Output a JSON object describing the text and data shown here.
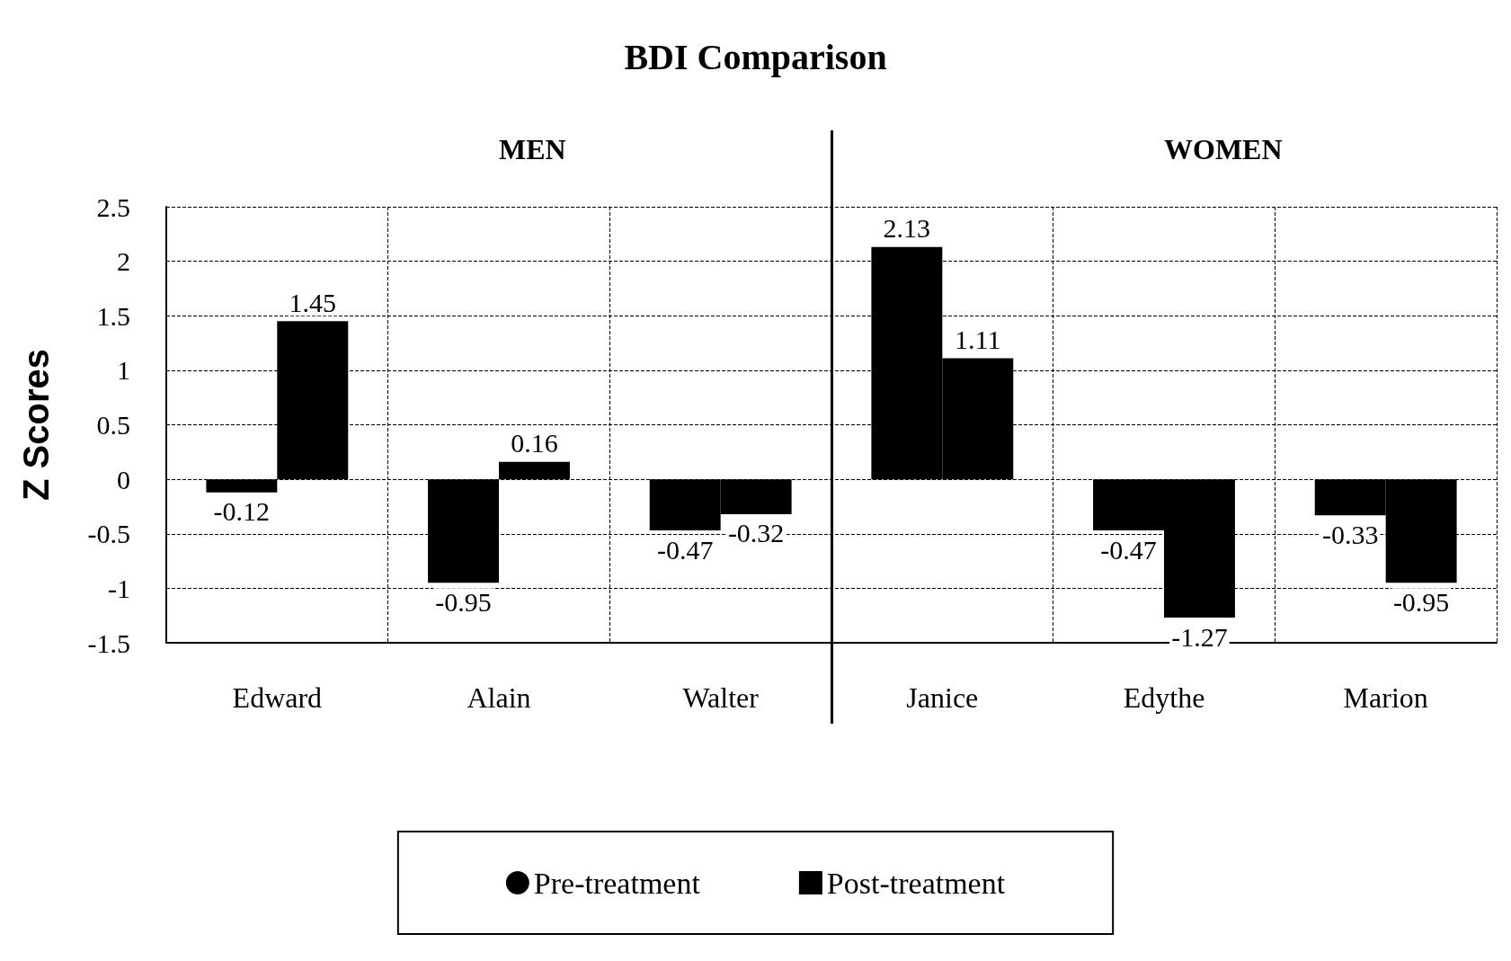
{
  "chart_data": {
    "type": "bar",
    "title": "BDI Comparison",
    "ylabel": "Z Scores",
    "annotations": [
      "MEN",
      "WOMEN"
    ],
    "categories": [
      "Edward",
      "Alain",
      "Walter",
      "Janice",
      "Edythe",
      "Marion"
    ],
    "series": [
      {
        "name": "Pre-treatment",
        "color": "#000000",
        "marker": "circle",
        "values": [
          -0.12,
          -0.95,
          -0.47,
          2.13,
          -0.47,
          -0.33
        ]
      },
      {
        "name": "Post-treatment",
        "color": "#000000",
        "marker": "square",
        "values": [
          1.45,
          0.16,
          -0.32,
          1.11,
          -1.27,
          -0.95
        ]
      }
    ],
    "ylim": [
      -1.5,
      2.5
    ],
    "yticks": [
      -1.5,
      -1,
      -0.5,
      0,
      0.5,
      1,
      1.5,
      2,
      2.5
    ],
    "grid": true,
    "legend": "bottom",
    "data_labels": true
  }
}
